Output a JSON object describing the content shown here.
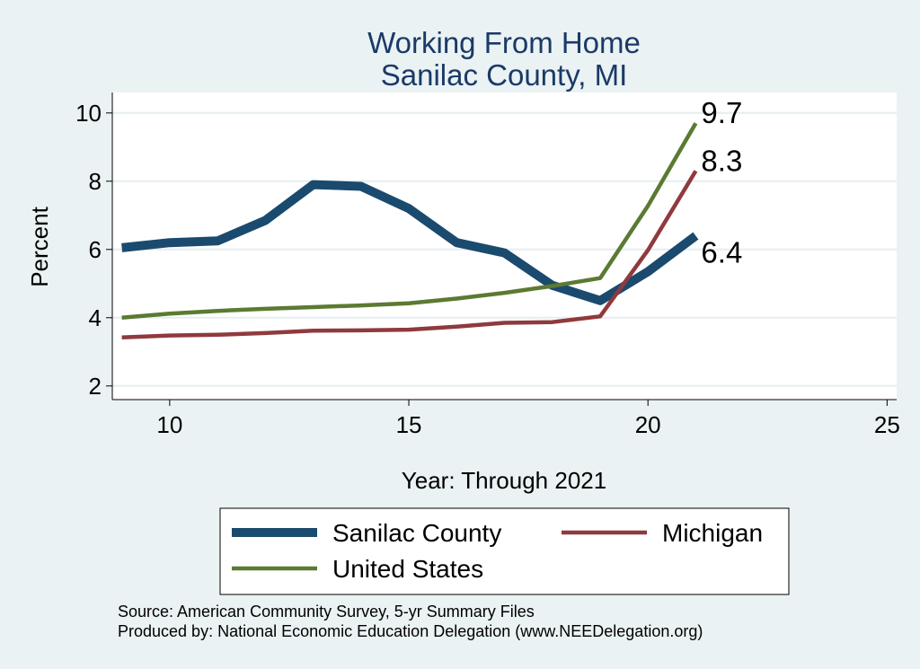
{
  "chart_data": {
    "type": "line",
    "title": "Working From Home",
    "subtitle": "Sanilac County, MI",
    "xlabel": "Year: Through 2021",
    "ylabel": "Percent",
    "xlim": [
      8.8,
      25.2
    ],
    "ylim": [
      1.6,
      10.6
    ],
    "xticks": [
      10,
      15,
      20,
      25
    ],
    "yticks": [
      2,
      4,
      6,
      8,
      10
    ],
    "grid": "horizontal",
    "series": [
      {
        "name": "Sanilac County",
        "color": "#1a4a6e",
        "width": "thick",
        "x": [
          9,
          10,
          11,
          12,
          13,
          14,
          15,
          16,
          17,
          18,
          19,
          20,
          21
        ],
        "values": [
          6.05,
          6.2,
          6.25,
          6.85,
          7.9,
          7.85,
          7.2,
          6.2,
          5.9,
          4.95,
          4.5,
          5.35,
          6.4
        ]
      },
      {
        "name": "Michigan",
        "color": "#8f3a3e",
        "width": "medium",
        "x": [
          9,
          10,
          11,
          12,
          13,
          14,
          15,
          16,
          17,
          18,
          19,
          20,
          21
        ],
        "values": [
          3.42,
          3.48,
          3.5,
          3.55,
          3.62,
          3.63,
          3.65,
          3.74,
          3.85,
          3.87,
          4.04,
          5.98,
          8.3
        ]
      },
      {
        "name": "United States",
        "color": "#5b7a32",
        "width": "medium",
        "x": [
          9,
          10,
          11,
          12,
          13,
          14,
          15,
          16,
          17,
          18,
          19,
          20,
          21
        ],
        "values": [
          4.0,
          4.12,
          4.2,
          4.26,
          4.31,
          4.36,
          4.42,
          4.56,
          4.73,
          4.93,
          5.16,
          7.28,
          9.7
        ]
      }
    ],
    "end_labels": [
      {
        "text": "9.7",
        "series": "United States"
      },
      {
        "text": "8.3",
        "series": "Michigan"
      },
      {
        "text": "6.4",
        "series": "Sanilac County"
      }
    ],
    "legend": {
      "placement": "bottom",
      "items": [
        "Sanilac County",
        "Michigan",
        "United States"
      ]
    }
  },
  "source": {
    "line1": "Source: American Community Survey, 5-yr Summary Files",
    "line2": "Produced by: National Economic Education Delegation (www.NEEDelegation.org)"
  }
}
